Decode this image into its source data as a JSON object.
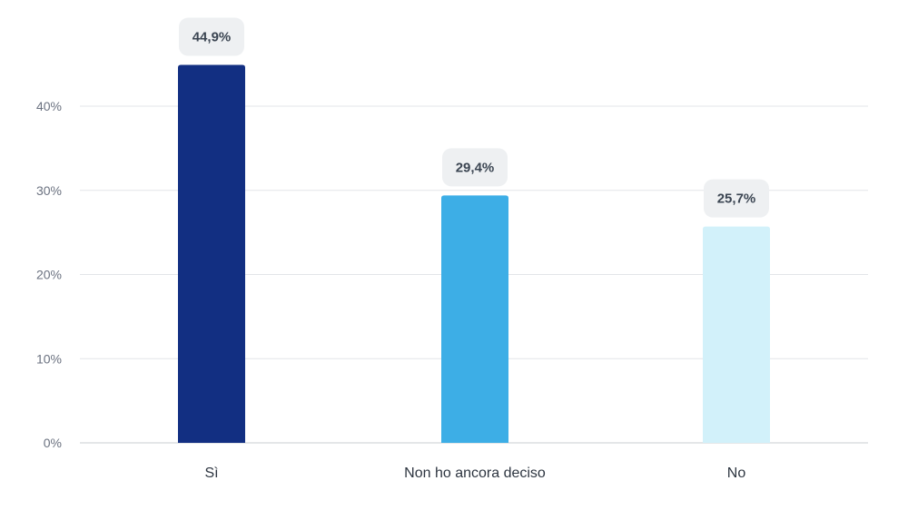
{
  "chart_data": {
    "type": "bar",
    "title": "",
    "xlabel": "",
    "ylabel": "",
    "categories": [
      "Sì",
      "Non ho ancora deciso",
      "No"
    ],
    "values": [
      44.9,
      29.4,
      25.7
    ],
    "value_labels": [
      "44,9%",
      "29,4%",
      "25,7%"
    ],
    "colors": [
      "#122f82",
      "#3daee6",
      "#d2f1fa"
    ],
    "ylim": [
      0,
      40
    ],
    "yticks": [
      0,
      10,
      20,
      30,
      40
    ],
    "ytick_labels": [
      "0%",
      "10%",
      "20%",
      "30%",
      "40%"
    ],
    "grid": true,
    "legend": "none"
  }
}
